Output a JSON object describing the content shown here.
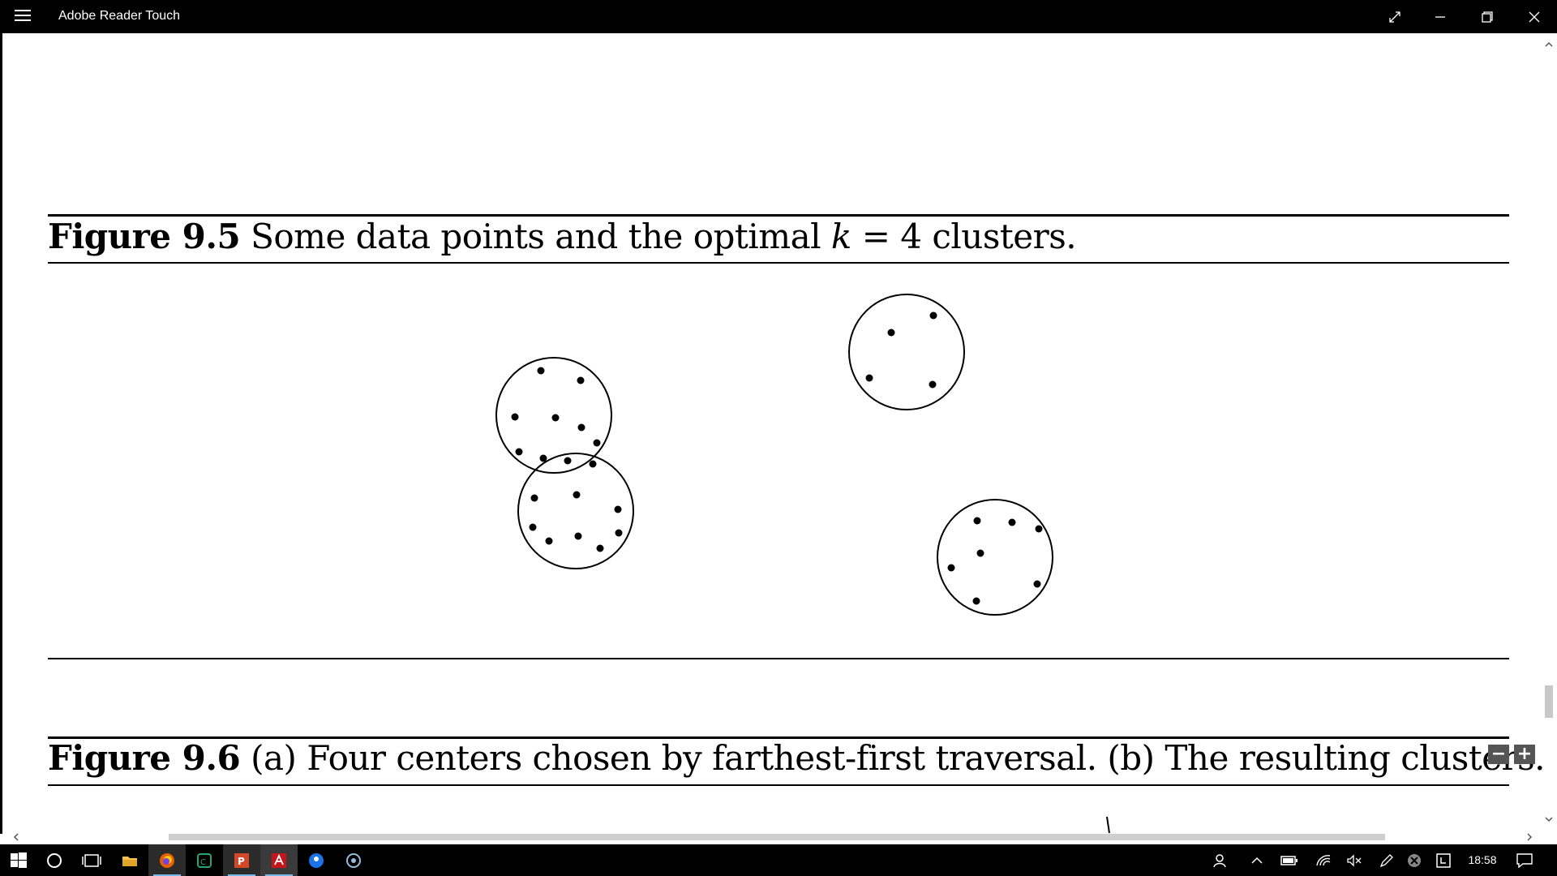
{
  "window": {
    "title": "Adobe Reader Touch",
    "icons": [
      "hamburger-menu-icon",
      "fullscreen-icon",
      "minimize-icon",
      "restore-icon",
      "close-icon"
    ]
  },
  "document": {
    "figure_9_5": {
      "label": "Figure 9.5",
      "caption_pre": "Some data points and the optimal",
      "caption_math": "k",
      "caption_eq": "= 4",
      "caption_post": "clusters."
    },
    "figure_9_6": {
      "label": "Figure 9.6",
      "caption": "(a) Four centers chosen by farthest-first traversal. (b) The resulting clusters."
    }
  },
  "zoom": {
    "minus": "−",
    "plus": "+"
  },
  "taskbar": {
    "apps": [
      "start-icon",
      "cortana-icon",
      "task-view-icon",
      "file-explorer-icon",
      "firefox-icon",
      "app-icon",
      "powerpoint-icon",
      "adobe-reader-icon",
      "maps-icon",
      "app-icon-2"
    ],
    "tray": [
      "people-icon",
      "show-hidden-icons",
      "battery-icon",
      "wifi-icon",
      "volume-muted-icon",
      "pen-icon",
      "error-icon",
      "app-tray-icon"
    ],
    "time": "18:58",
    "notifications": "action-center-icon"
  }
}
